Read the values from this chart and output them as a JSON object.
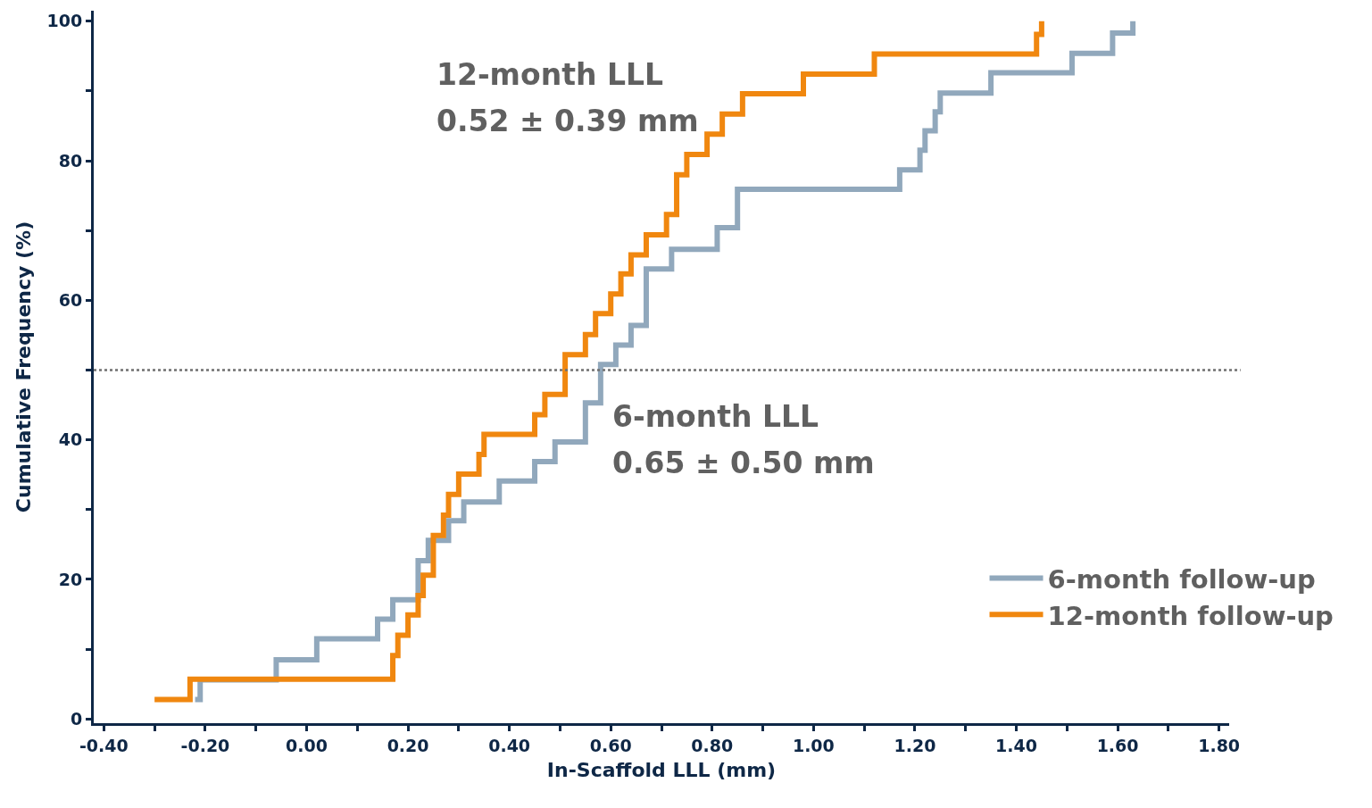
{
  "chart_data": {
    "type": "step",
    "xlabel": "In-Scaffold LLL (mm)",
    "ylabel": "Cumulative Frequency (%)",
    "xlim": [
      -0.42,
      1.82
    ],
    "ylim": [
      -0.6,
      101.5
    ],
    "xticks": [
      {
        "value": -0.4,
        "label": "-0.40"
      },
      {
        "value": -0.3,
        "label": null
      },
      {
        "value": -0.2,
        "label": "-0.20"
      },
      {
        "value": -0.1,
        "label": null
      },
      {
        "value": 0,
        "label": "0.00"
      },
      {
        "value": 0.1,
        "label": null
      },
      {
        "value": 0.2,
        "label": "0.20"
      },
      {
        "value": 0.3,
        "label": null
      },
      {
        "value": 0.4,
        "label": "0.40"
      },
      {
        "value": 0.5,
        "label": null
      },
      {
        "value": 0.6,
        "label": "0.60"
      },
      {
        "value": 0.7,
        "label": null
      },
      {
        "value": 0.8,
        "label": "0.80"
      },
      {
        "value": 0.9,
        "label": null
      },
      {
        "value": 1.0,
        "label": "1.00"
      },
      {
        "value": 1.1,
        "label": null
      },
      {
        "value": 1.2,
        "label": "1.20"
      },
      {
        "value": 1.3,
        "label": null
      },
      {
        "value": 1.4,
        "label": "1.40"
      },
      {
        "value": 1.5,
        "label": null
      },
      {
        "value": 1.6,
        "label": "1.60"
      },
      {
        "value": 1.7,
        "label": null
      },
      {
        "value": 1.8,
        "label": "1.80"
      }
    ],
    "yticks": [
      0,
      {
        "value": 10,
        "label": null
      },
      20,
      {
        "value": 30,
        "label": null
      },
      40,
      {
        "value": 50,
        "label": null
      },
      60,
      {
        "value": 70,
        "label": null
      },
      80,
      {
        "value": 90,
        "label": null
      },
      100
    ],
    "legend": "bottom right",
    "marker": "none",
    "line_style": "solid",
    "series": [
      {
        "name": "6-month follow-up",
        "color": "#91a8bc",
        "x": [
          -0.22,
          -0.21,
          -0.06,
          0.02,
          0.14,
          0.17,
          0.22,
          0.24,
          0.28,
          0.31,
          0.38,
          0.45,
          0.49,
          0.55,
          0.58,
          0.61,
          0.64,
          0.67,
          0.67,
          0.72,
          0.81,
          0.85,
          1.17,
          1.21,
          1.22,
          1.24,
          1.25,
          1.35,
          1.51,
          1.59,
          1.63
        ],
        "values": [
          2.8,
          5.6,
          8.5,
          11.5,
          14.3,
          17.1,
          22.7,
          25.6,
          28.4,
          31.1,
          34.1,
          36.9,
          39.7,
          45.3,
          50.8,
          53.6,
          56.4,
          59.1,
          64.5,
          67.3,
          70.4,
          75.9,
          78.7,
          81.5,
          84.3,
          87.0,
          89.7,
          92.6,
          95.4,
          98.3,
          100
        ]
      },
      {
        "name": "12-month follow-up",
        "color": "#f0870f",
        "x": [
          -0.3,
          -0.23,
          0.17,
          0.18,
          0.2,
          0.22,
          0.23,
          0.25,
          0.27,
          0.28,
          0.3,
          0.34,
          0.35,
          0.45,
          0.47,
          0.51,
          0.55,
          0.57,
          0.6,
          0.62,
          0.64,
          0.67,
          0.71,
          0.73,
          0.75,
          0.79,
          0.82,
          0.86,
          0.98,
          1.12,
          1.44,
          1.45
        ],
        "values": [
          2.8,
          5.7,
          9.1,
          12.0,
          14.9,
          17.7,
          20.6,
          26.3,
          29.2,
          32.2,
          35.1,
          37.9,
          40.8,
          43.6,
          46.5,
          52.2,
          55.1,
          58.1,
          60.9,
          63.8,
          66.5,
          69.4,
          72.3,
          78.0,
          80.9,
          83.8,
          86.7,
          89.6,
          92.4,
          95.3,
          98.1,
          100
        ]
      }
    ],
    "ref_lines": [
      {
        "axis": "y",
        "value": 50,
        "color": "#707070",
        "line_style": "dotted"
      }
    ],
    "annotations": [
      "12-month LLL",
      "0.52 ± 0.39 mm",
      "6-month LLL",
      "0.65 ± 0.50 mm"
    ]
  }
}
